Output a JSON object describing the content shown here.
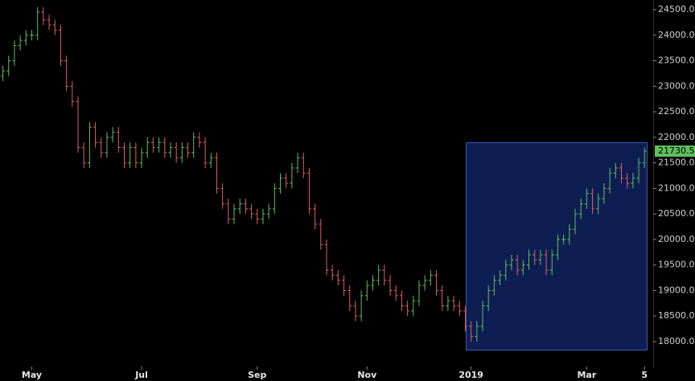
{
  "chart_data": {
    "type": "ohlc",
    "up_color": "#5fbf5f",
    "down_color": "#e06060",
    "xlim": [
      -0.5,
      112.5
    ],
    "xticks": [
      {
        "value": 5,
        "label": "May"
      },
      {
        "value": 24,
        "label": "Jul"
      },
      {
        "value": 44,
        "label": "Sep"
      },
      {
        "value": 63,
        "label": "Nov"
      },
      {
        "value": 81,
        "label": "2019"
      },
      {
        "value": 101,
        "label": "Mar"
      },
      {
        "value": 111,
        "label": "5"
      }
    ],
    "ylim": [
      17528,
      24689
    ],
    "yticks": [
      {
        "value": 18000,
        "label": "18000.00"
      },
      {
        "value": 18500,
        "label": "18500.00"
      },
      {
        "value": 19000,
        "label": "19000.00"
      },
      {
        "value": 19500,
        "label": "19500.00"
      },
      {
        "value": 20000,
        "label": "20000.00"
      },
      {
        "value": 20500,
        "label": "20500.00"
      },
      {
        "value": 21000,
        "label": "21000.00"
      },
      {
        "value": 21500,
        "label": "21500.00"
      },
      {
        "value": 22000,
        "label": "22000.00"
      },
      {
        "value": 22500,
        "label": "22500.00"
      },
      {
        "value": 23000,
        "label": "23000.00"
      },
      {
        "value": 23500,
        "label": "23500.00"
      },
      {
        "value": 24000,
        "label": "24000.00"
      },
      {
        "value": 24500,
        "label": "24500.00"
      }
    ],
    "last_price": {
      "value": 21730.5,
      "label": "21730.50"
    },
    "open": [
      23200,
      23300,
      23500,
      23800,
      23900,
      24000,
      24000,
      24450,
      24300,
      24200,
      24100,
      23500,
      23000,
      22700,
      21800,
      21500,
      22200,
      21900,
      21700,
      22000,
      22100,
      21800,
      21500,
      21800,
      21500,
      21700,
      21900,
      21800,
      21900,
      21700,
      21800,
      21600,
      21800,
      21700,
      22000,
      21900,
      21500,
      21600,
      21000,
      20700,
      20400,
      20600,
      20700,
      20600,
      20500,
      20400,
      20500,
      20600,
      21000,
      21200,
      21100,
      21400,
      21600,
      21300,
      20600,
      20300,
      19900,
      19400,
      19300,
      19200,
      19000,
      18700,
      18500,
      18900,
      19100,
      19200,
      19400,
      19200,
      19000,
      18900,
      18700,
      18600,
      18800,
      19100,
      19200,
      19300,
      19000,
      18700,
      18800,
      18700,
      18600,
      18300,
      18100,
      18300,
      18700,
      19000,
      19200,
      19300,
      19500,
      19600,
      19400,
      19500,
      19700,
      19600,
      19700,
      19400,
      19700,
      20000,
      20000,
      20200,
      20500,
      20700,
      20900,
      20600,
      20800,
      21000,
      21300,
      21400,
      21200,
      21100,
      21200,
      21500
    ],
    "high": [
      23400,
      23600,
      23900,
      24000,
      24100,
      24100,
      24550,
      24550,
      24400,
      24300,
      24200,
      23600,
      23100,
      22800,
      21900,
      22300,
      22300,
      22000,
      22100,
      22200,
      22200,
      21900,
      21900,
      21900,
      21800,
      22000,
      22000,
      22000,
      22000,
      21900,
      21900,
      21900,
      21900,
      22100,
      22100,
      22000,
      21700,
      21700,
      21100,
      20800,
      20700,
      20800,
      20800,
      20700,
      20600,
      20600,
      20700,
      21100,
      21300,
      21300,
      21500,
      21700,
      21700,
      21400,
      20700,
      20400,
      20000,
      19500,
      19400,
      19300,
      19100,
      18800,
      19000,
      19200,
      19300,
      19500,
      19500,
      19300,
      19100,
      19000,
      18800,
      18900,
      19200,
      19300,
      19400,
      19400,
      19100,
      18900,
      18900,
      18800,
      18700,
      18400,
      18400,
      18800,
      19100,
      19300,
      19400,
      19600,
      19700,
      19700,
      19600,
      19800,
      19800,
      19800,
      19800,
      19800,
      20100,
      20100,
      20300,
      20600,
      20800,
      21000,
      21000,
      20900,
      21100,
      21400,
      21500,
      21500,
      21300,
      21300,
      21600,
      21800
    ],
    "low": [
      23100,
      23200,
      23400,
      23700,
      23800,
      23900,
      23900,
      24200,
      24100,
      24000,
      23400,
      22900,
      22600,
      21700,
      21400,
      21400,
      21800,
      21600,
      21600,
      21900,
      21700,
      21400,
      21400,
      21400,
      21400,
      21600,
      21700,
      21700,
      21600,
      21600,
      21500,
      21500,
      21600,
      21600,
      21800,
      21400,
      21400,
      20900,
      20600,
      20300,
      20300,
      20500,
      20500,
      20400,
      20300,
      20300,
      20400,
      20500,
      20900,
      21000,
      21000,
      21300,
      21200,
      20500,
      20200,
      19800,
      19300,
      19200,
      19100,
      18900,
      18600,
      18400,
      18400,
      18800,
      19000,
      19100,
      19100,
      18900,
      18800,
      18600,
      18500,
      18500,
      18700,
      19000,
      19100,
      18900,
      18600,
      18600,
      18600,
      18500,
      18200,
      18000,
      18000,
      18200,
      18600,
      18900,
      19100,
      19200,
      19400,
      19300,
      19300,
      19400,
      19500,
      19500,
      19300,
      19300,
      19600,
      19900,
      19900,
      20100,
      20400,
      20600,
      20500,
      20500,
      20700,
      20900,
      21200,
      21100,
      21000,
      21000,
      21100,
      21400
    ],
    "close": [
      23300,
      23500,
      23800,
      23900,
      24000,
      24000,
      24450,
      24300,
      24200,
      24100,
      23500,
      23000,
      22700,
      21800,
      21500,
      22200,
      21900,
      21700,
      22000,
      22100,
      21800,
      21500,
      21800,
      21500,
      21700,
      21900,
      21800,
      21900,
      21700,
      21800,
      21600,
      21800,
      21700,
      22000,
      21900,
      21500,
      21600,
      21000,
      20700,
      20400,
      20600,
      20700,
      20600,
      20500,
      20400,
      20500,
      20600,
      21000,
      21200,
      21100,
      21400,
      21600,
      21300,
      20600,
      20300,
      19900,
      19400,
      19300,
      19200,
      19000,
      18700,
      18500,
      18900,
      19100,
      19200,
      19400,
      19200,
      19000,
      18900,
      18700,
      18600,
      18800,
      19100,
      19200,
      19300,
      19000,
      18700,
      18800,
      18700,
      18600,
      18300,
      18100,
      18300,
      18700,
      19000,
      19200,
      19300,
      19500,
      19600,
      19400,
      19500,
      19700,
      19600,
      19700,
      19400,
      19700,
      20000,
      20000,
      20200,
      20500,
      20700,
      20900,
      20600,
      20800,
      21000,
      21300,
      21400,
      21200,
      21100,
      21200,
      21500,
      21730.5
    ]
  }
}
